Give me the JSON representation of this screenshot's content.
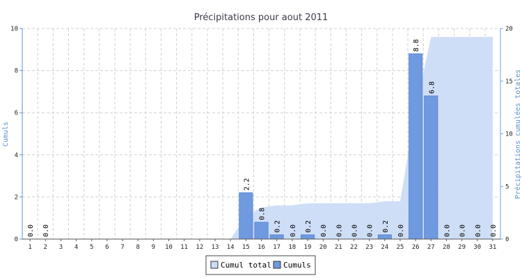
{
  "chart_data": {
    "type": "bar",
    "title": "Précipitations pour aout 2011",
    "ylabel": "Cumuls",
    "y2label": "Précipitations cumulées totales",
    "ylim": [
      0,
      10
    ],
    "y2lim": [
      0,
      20
    ],
    "yticks": [
      "0",
      "2",
      "4",
      "6",
      "8",
      "10"
    ],
    "y2ticks": [
      "0",
      "5",
      "10",
      "15",
      "20"
    ],
    "grid": true,
    "legend_position": "bottom-center",
    "categories": [
      "1",
      "2",
      "3",
      "4",
      "5",
      "6",
      "7",
      "8",
      "9",
      "10",
      "11",
      "12",
      "13",
      "14",
      "15",
      "16",
      "17",
      "18",
      "19",
      "20",
      "21",
      "22",
      "23",
      "24",
      "25",
      "26",
      "27",
      "28",
      "29",
      "30",
      "31"
    ],
    "series": [
      {
        "name": "Cumul total",
        "kind": "area",
        "axis": "right",
        "color": "#ccdcf7",
        "values": [
          0,
          0,
          0,
          0,
          0,
          0,
          0,
          0,
          0,
          0,
          0,
          0,
          0,
          0,
          2.2,
          3.0,
          3.2,
          3.2,
          3.4,
          3.4,
          3.4,
          3.4,
          3.4,
          3.6,
          3.6,
          12.4,
          19.2,
          19.2,
          19.2,
          19.2,
          19.2
        ]
      },
      {
        "name": "Cumuls",
        "kind": "bar",
        "axis": "left",
        "color": "#6f9ae0",
        "values": [
          null,
          0,
          null,
          null,
          null,
          null,
          null,
          null,
          null,
          null,
          null,
          null,
          null,
          null,
          2.2,
          0.8,
          0.2,
          0,
          0.2,
          0,
          0,
          0,
          0,
          0.2,
          0,
          8.8,
          6.8,
          0,
          0,
          0,
          0
        ],
        "labels": [
          "0.0",
          "0.0",
          "",
          "",
          "",
          "",
          "",
          "",
          "",
          "",
          "",
          "",
          "",
          "",
          "2.2",
          "0.8",
          "0.2",
          "0.0",
          "0.2",
          "0.0",
          "0.0",
          "0.0",
          "0.0",
          "0.2",
          "0.0",
          "8.8",
          "6.8",
          "0.0",
          "0.0",
          "0.0",
          "0.0"
        ]
      }
    ],
    "colors": {
      "axis_left": "#5b8fd6",
      "axis_right": "#6aa6e0",
      "grid": "#cfcfcf",
      "bar_stroke": "#5a86cf"
    }
  }
}
